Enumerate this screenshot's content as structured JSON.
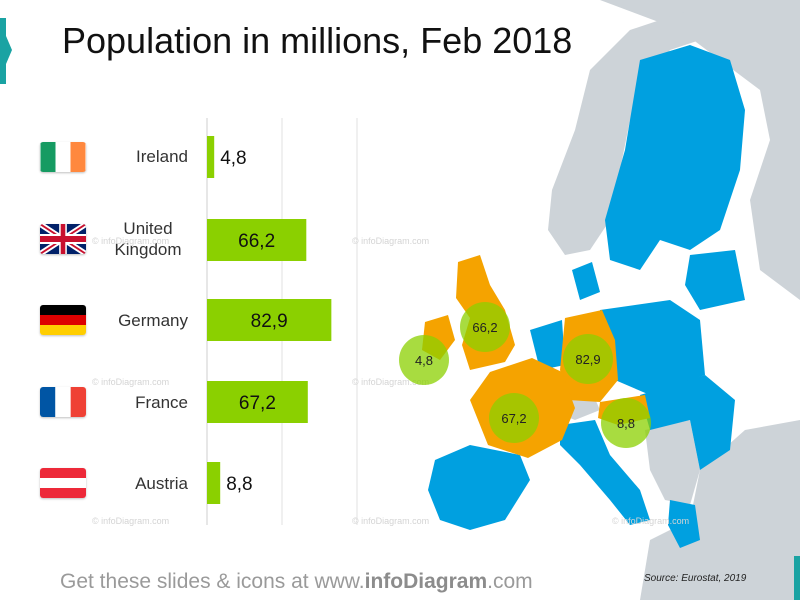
{
  "title": "Population in millions, Feb 2018",
  "footer": {
    "prefix": "Get these slides & icons at www.",
    "brand": "infoDiagram",
    "suffix": ".com"
  },
  "source": "Source: Eurostat, 2019",
  "watermark": "© infoDiagram.com",
  "colors": {
    "bar": "#8bd000",
    "highlight_country": "#f5a300",
    "eu_country": "#00a0e0",
    "other_country": "#cdd3d8",
    "bubble": "#8bd000",
    "accent": "#1aa3a3"
  },
  "flags": {
    "ireland": "flag-ireland-icon",
    "uk": "flag-uk-icon",
    "germany": "flag-germany-icon",
    "france": "flag-france-icon",
    "austria": "flag-austria-icon"
  },
  "chart_data": {
    "type": "bar",
    "orientation": "horizontal",
    "title": "Population in millions, Feb 2018",
    "categories": [
      "Ireland",
      "United Kingdom",
      "Germany",
      "France",
      "Austria"
    ],
    "values": [
      4.8,
      66.2,
      82.9,
      67.2,
      8.8
    ],
    "value_labels": [
      "4,8",
      "66,2",
      "82,9",
      "67,2",
      "8,8"
    ],
    "xlim": [
      0,
      100
    ],
    "grid": true,
    "map_bubbles": [
      {
        "country": "Ireland",
        "label": "4,8"
      },
      {
        "country": "United Kingdom",
        "label": "66,2"
      },
      {
        "country": "Germany",
        "label": "82,9"
      },
      {
        "country": "France",
        "label": "67,2"
      },
      {
        "country": "Austria",
        "label": "8,8"
      }
    ]
  }
}
